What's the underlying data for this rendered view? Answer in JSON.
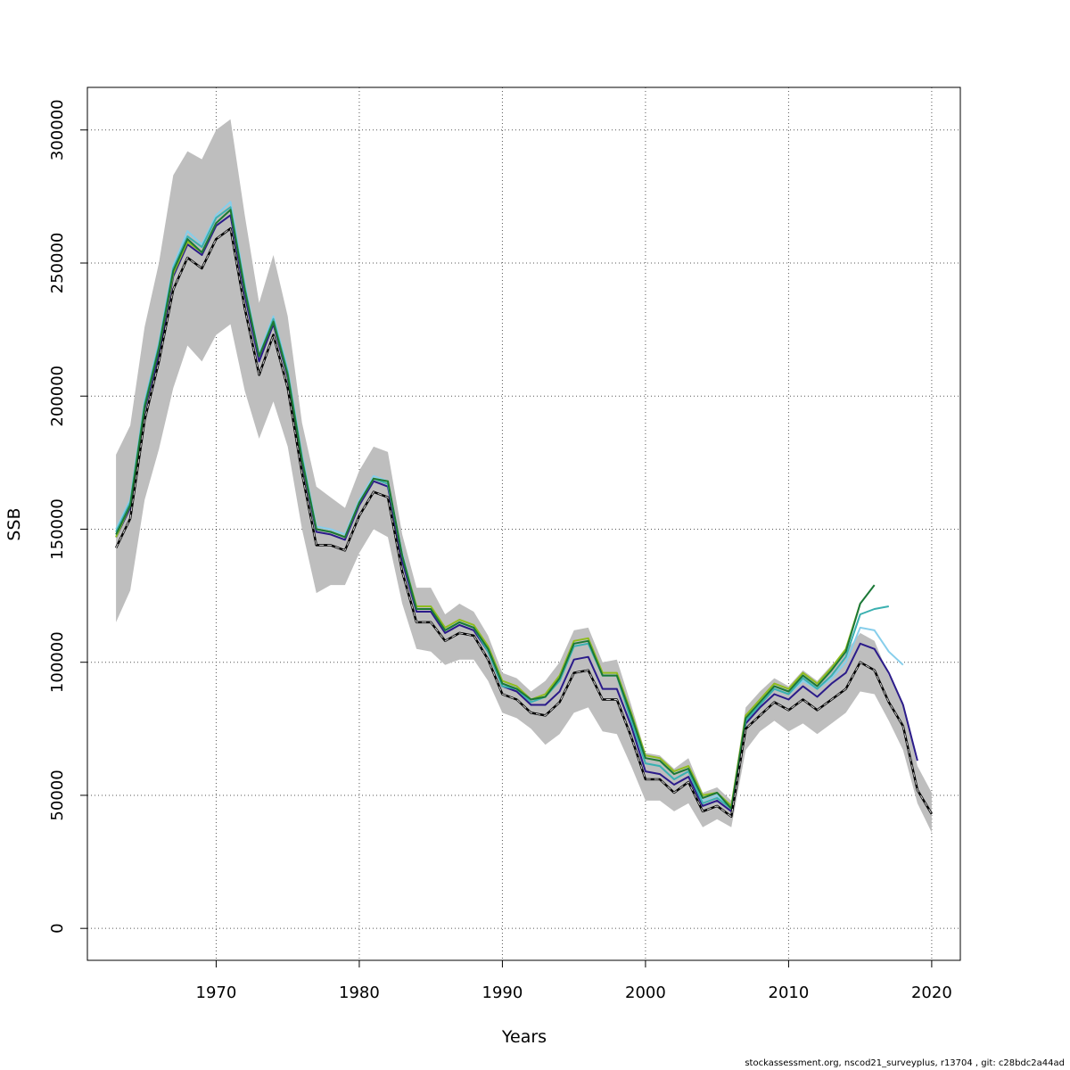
{
  "chart_data": {
    "type": "line",
    "xlabel": "Years",
    "ylabel": "SSB",
    "xlim": [
      1961,
      2022
    ],
    "ylim": [
      -12000,
      316000
    ],
    "xticks": [
      1970,
      1980,
      1990,
      2000,
      2010,
      2020
    ],
    "yticks": [
      0,
      50000,
      100000,
      150000,
      200000,
      250000,
      300000
    ],
    "grid": true,
    "colors": {
      "band": "#bebebe",
      "base": "#000000",
      "r2016": "#1b7837",
      "r2017": "#2ca25f",
      "r2018": "#87ceeb",
      "r2019": "#2b1b8a",
      "r2020": "#2a2a2a",
      "olive": "#8fbc1f",
      "teal": "#3ab0b0"
    },
    "band": {
      "years": [
        1963,
        1964,
        1965,
        1966,
        1967,
        1968,
        1969,
        1970,
        1971,
        1972,
        1973,
        1974,
        1975,
        1976,
        1977,
        1978,
        1979,
        1980,
        1981,
        1982,
        1983,
        1984,
        1985,
        1986,
        1987,
        1988,
        1989,
        1990,
        1991,
        1992,
        1993,
        1994,
        1995,
        1996,
        1997,
        1998,
        1999,
        2000,
        2001,
        2002,
        2003,
        2004,
        2005,
        2006,
        2007,
        2008,
        2009,
        2010,
        2011,
        2012,
        2013,
        2014,
        2015,
        2016,
        2017,
        2018,
        2019,
        2020
      ],
      "upper": [
        178000,
        189000,
        226000,
        250000,
        283000,
        292000,
        289000,
        300000,
        304000,
        268000,
        235000,
        253000,
        230000,
        190000,
        166000,
        162000,
        158000,
        172000,
        181000,
        179000,
        148000,
        128000,
        128000,
        118000,
        122000,
        119000,
        110000,
        96000,
        94000,
        89000,
        93000,
        100000,
        112000,
        113000,
        100000,
        101000,
        84000,
        66000,
        65000,
        60000,
        64000,
        51000,
        53000,
        48000,
        83000,
        89000,
        94000,
        91000,
        97000,
        93000,
        99000,
        104000,
        111000,
        108000,
        95000,
        85000,
        61000,
        51000
      ],
      "lower": [
        115000,
        127000,
        161000,
        180000,
        203000,
        219000,
        213000,
        223000,
        227000,
        202000,
        184000,
        198000,
        181000,
        150000,
        126000,
        129000,
        129000,
        141000,
        150000,
        147000,
        122000,
        105000,
        104000,
        99000,
        101000,
        101000,
        93000,
        81000,
        79000,
        75000,
        69000,
        73000,
        81000,
        83000,
        74000,
        73000,
        61000,
        48000,
        48000,
        44000,
        47000,
        38000,
        41000,
        38000,
        67000,
        74000,
        78000,
        74000,
        77000,
        73000,
        77000,
        81000,
        89000,
        88000,
        78000,
        67000,
        47000,
        36000
      ]
    },
    "series": [
      {
        "name": "",
        "color_key": "base",
        "dashed": true,
        "years": [
          1963,
          1964,
          1965,
          1966,
          1967,
          1968,
          1969,
          1970,
          1971,
          1972,
          1973,
          1974,
          1975,
          1976,
          1977,
          1978,
          1979,
          1980,
          1981,
          1982,
          1983,
          1984,
          1985,
          1986,
          1987,
          1988,
          1989,
          1990,
          1991,
          1992,
          1993,
          1994,
          1995,
          1996,
          1997,
          1998,
          1999,
          2000,
          2001,
          2002,
          2003,
          2004,
          2005,
          2006,
          2007,
          2008,
          2009,
          2010,
          2011,
          2012,
          2013,
          2014,
          2015,
          2016,
          2017,
          2018,
          2019,
          2020
        ],
        "values": [
          143000,
          154000,
          191000,
          213000,
          240000,
          252000,
          248000,
          259000,
          263000,
          233000,
          208000,
          223000,
          203000,
          171000,
          144000,
          144000,
          142000,
          155000,
          164000,
          162000,
          134000,
          115000,
          115000,
          108000,
          111000,
          110000,
          101000,
          88000,
          86000,
          81000,
          80000,
          85000,
          96000,
          97000,
          86000,
          86000,
          72000,
          56000,
          56000,
          51000,
          55000,
          44000,
          46000,
          42000,
          75000,
          80000,
          85000,
          82000,
          86000,
          82000,
          86000,
          90000,
          100000,
          97000,
          85000,
          76000,
          52000,
          43000
        ]
      },
      {
        "name": "",
        "color_key": "r2019",
        "dashed": false,
        "years": [
          1963,
          1964,
          1965,
          1966,
          1967,
          1968,
          1969,
          1970,
          1971,
          1972,
          1973,
          1974,
          1975,
          1976,
          1977,
          1978,
          1979,
          1980,
          1981,
          1982,
          1983,
          1984,
          1985,
          1986,
          1987,
          1988,
          1989,
          1990,
          1991,
          1992,
          1993,
          1994,
          1995,
          1996,
          1997,
          1998,
          1999,
          2000,
          2001,
          2002,
          2003,
          2004,
          2005,
          2006,
          2007,
          2008,
          2009,
          2010,
          2011,
          2012,
          2013,
          2014,
          2015,
          2016,
          2017,
          2018,
          2019
        ],
        "values": [
          147000,
          158000,
          195000,
          216000,
          245000,
          257000,
          253000,
          264000,
          268000,
          238000,
          213000,
          227000,
          207000,
          175000,
          149000,
          148000,
          146000,
          159000,
          168000,
          166000,
          138000,
          119000,
          119000,
          111000,
          114000,
          112000,
          104000,
          91000,
          89000,
          84000,
          84000,
          89000,
          101000,
          102000,
          90000,
          90000,
          76000,
          59000,
          58000,
          54000,
          57000,
          46000,
          48000,
          44000,
          77000,
          83000,
          88000,
          86000,
          91000,
          87000,
          92000,
          96000,
          107000,
          105000,
          96000,
          84000,
          63000
        ]
      },
      {
        "name": "",
        "color_key": "r2018",
        "dashed": false,
        "years": [
          1963,
          1964,
          1965,
          1966,
          1967,
          1968,
          1969,
          1970,
          1971,
          1972,
          1973,
          1974,
          1975,
          1976,
          1977,
          1978,
          1979,
          1980,
          1981,
          1982,
          1983,
          1984,
          1985,
          1986,
          1987,
          1988,
          1989,
          1990,
          1991,
          1992,
          1993,
          1994,
          1995,
          1996,
          1997,
          1998,
          1999,
          2000,
          2001,
          2002,
          2003,
          2004,
          2005,
          2006,
          2007,
          2008,
          2009,
          2010,
          2011,
          2012,
          2013,
          2014,
          2015,
          2016,
          2017,
          2018
        ],
        "values": [
          150000,
          161000,
          198000,
          220000,
          249000,
          262000,
          257000,
          268000,
          273000,
          242000,
          216000,
          230000,
          210000,
          178000,
          151000,
          150000,
          148000,
          161000,
          170000,
          168000,
          141000,
          121000,
          121000,
          112000,
          115000,
          113000,
          105000,
          92000,
          90000,
          85000,
          87000,
          93000,
          106000,
          107000,
          95000,
          95000,
          79000,
          62000,
          61000,
          56000,
          59000,
          48000,
          50000,
          45000,
          78000,
          85000,
          90000,
          88000,
          93000,
          90000,
          94000,
          100000,
          113000,
          112000,
          104000,
          99000
        ]
      },
      {
        "name": "",
        "color_key": "teal",
        "dashed": false,
        "years": [
          1963,
          1964,
          1965,
          1966,
          1967,
          1968,
          1969,
          1970,
          1971,
          1972,
          1973,
          1974,
          1975,
          1976,
          1977,
          1978,
          1979,
          1980,
          1981,
          1982,
          1983,
          1984,
          1985,
          1986,
          1987,
          1988,
          1989,
          1990,
          1991,
          1992,
          1993,
          1994,
          1995,
          1996,
          1997,
          1998,
          1999,
          2000,
          2001,
          2002,
          2003,
          2004,
          2005,
          2006,
          2007,
          2008,
          2009,
          2010,
          2011,
          2012,
          2013,
          2014,
          2015,
          2016,
          2017
        ],
        "values": [
          149000,
          160000,
          197000,
          219000,
          248000,
          260000,
          256000,
          267000,
          271000,
          241000,
          215000,
          229000,
          209000,
          177000,
          150000,
          149000,
          147000,
          160000,
          169000,
          167000,
          140000,
          120000,
          120000,
          112000,
          115000,
          113000,
          104000,
          91000,
          90000,
          85000,
          87000,
          93000,
          106000,
          107000,
          95000,
          95000,
          78000,
          62000,
          61000,
          56000,
          59000,
          47000,
          49000,
          45000,
          78000,
          84000,
          90000,
          88000,
          94000,
          90000,
          95000,
          102000,
          118000,
          120000,
          121000
        ]
      },
      {
        "name": "",
        "color_key": "olive",
        "dashed": false,
        "years": [
          1963,
          1964,
          1965,
          1966,
          1967,
          1968,
          1969,
          1970,
          1971,
          1972,
          1973,
          1974,
          1975,
          1976,
          1977,
          1978,
          1979,
          1980,
          1981,
          1982,
          1983,
          1984,
          1985,
          1986,
          1987,
          1988,
          1989,
          1990,
          1991,
          1992,
          1993,
          1994,
          1995,
          1996,
          1997,
          1998,
          1999,
          2000,
          2001,
          2002,
          2003,
          2004,
          2005,
          2006,
          2007,
          2008,
          2009,
          2010,
          2011,
          2012,
          2013,
          2014,
          2015
        ],
        "values": [
          147000,
          159000,
          196000,
          218000,
          246000,
          258000,
          254000,
          265000,
          270000,
          240000,
          215000,
          228000,
          208000,
          176000,
          150000,
          149000,
          147000,
          160000,
          169000,
          168000,
          140000,
          121000,
          121000,
          113000,
          116000,
          114000,
          106000,
          93000,
          91000,
          86000,
          88000,
          95000,
          108000,
          109000,
          96000,
          96000,
          81000,
          65000,
          64000,
          59000,
          61000,
          50000,
          51000,
          46000,
          80000,
          86000,
          92000,
          90000,
          96000,
          92000,
          98000,
          105000,
          122000
        ]
      },
      {
        "name": "",
        "color_key": "r2016",
        "dashed": false,
        "years": [
          1963,
          1964,
          1965,
          1966,
          1967,
          1968,
          1969,
          1970,
          1971,
          1972,
          1973,
          1974,
          1975,
          1976,
          1977,
          1978,
          1979,
          1980,
          1981,
          1982,
          1983,
          1984,
          1985,
          1986,
          1987,
          1988,
          1989,
          1990,
          1991,
          1992,
          1993,
          1994,
          1995,
          1996,
          1997,
          1998,
          1999,
          2000,
          2001,
          2002,
          2003,
          2004,
          2005,
          2006,
          2007,
          2008,
          2009,
          2010,
          2011,
          2012,
          2013,
          2014,
          2015,
          2016
        ],
        "values": [
          148000,
          159000,
          196000,
          218000,
          247000,
          259000,
          254000,
          265000,
          270000,
          240000,
          215000,
          228000,
          208000,
          176000,
          150000,
          149000,
          147000,
          160000,
          169000,
          168000,
          140000,
          120000,
          120000,
          112000,
          115000,
          113000,
          105000,
          92000,
          90000,
          86000,
          87000,
          94000,
          107000,
          108000,
          95000,
          95000,
          80000,
          64000,
          63000,
          58000,
          60000,
          49000,
          51000,
          45000,
          79000,
          85000,
          91000,
          89000,
          95000,
          91000,
          97000,
          104000,
          122000,
          129000
        ]
      }
    ]
  },
  "footer": {
    "text": "stockassessment.org, nscod21_surveyplus, r13704 , git: c28bdc2a44ad"
  }
}
